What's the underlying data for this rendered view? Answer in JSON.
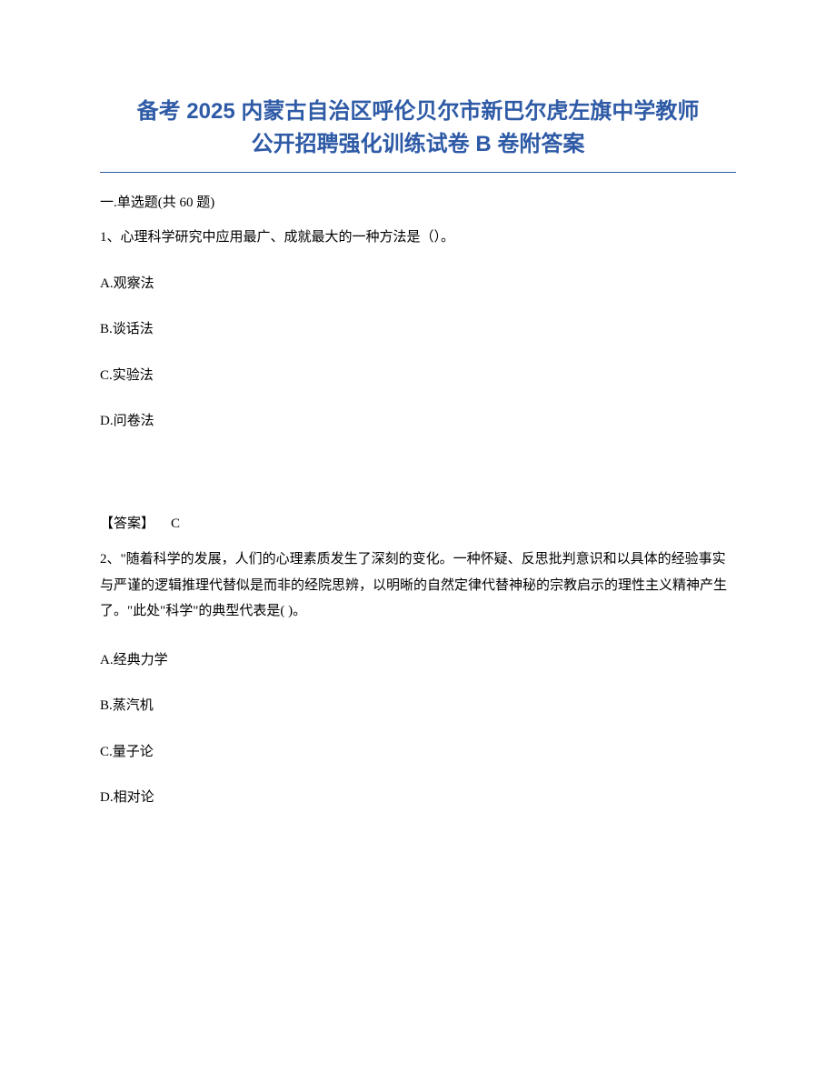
{
  "title": {
    "line1": "备考 2025 内蒙古自治区呼伦贝尔市新巴尔虎左旗中学教师",
    "line2": "公开招聘强化训练试卷 B 卷附答案",
    "color": "#2e5aa6",
    "fontsize": 24,
    "underline_color": "#2e5aa6"
  },
  "section": {
    "label": "一.单选题(共 60 题)"
  },
  "q1": {
    "stem": "1、心理科学研究中应用最广、成就最大的一种方法是（）。",
    "options": {
      "A": "A.观察法",
      "B": "B.谈话法",
      "C": "C.实验法",
      "D": "D.问卷法"
    },
    "answer_label": "【答案】",
    "answer_value": "C"
  },
  "q2": {
    "stem": "2、\"随着科学的发展，人们的心理素质发生了深刻的变化。一种怀疑、反思批判意识和以具体的经验事实与严谨的逻辑推理代替似是而非的经院思辨，以明晰的自然定律代替神秘的宗教启示的理性主义精神产生了。\"此处\"科学\"的典型代表是(   )。",
    "options": {
      "A": "A.经典力学",
      "B": "B.蒸汽机",
      "C": "C.量子论",
      "D": "D.相对论"
    }
  },
  "colors": {
    "text": "#000000",
    "background": "#ffffff"
  },
  "fonts": {
    "title_family": "SimHei",
    "body_family": "SimSun",
    "body_size": 15
  }
}
